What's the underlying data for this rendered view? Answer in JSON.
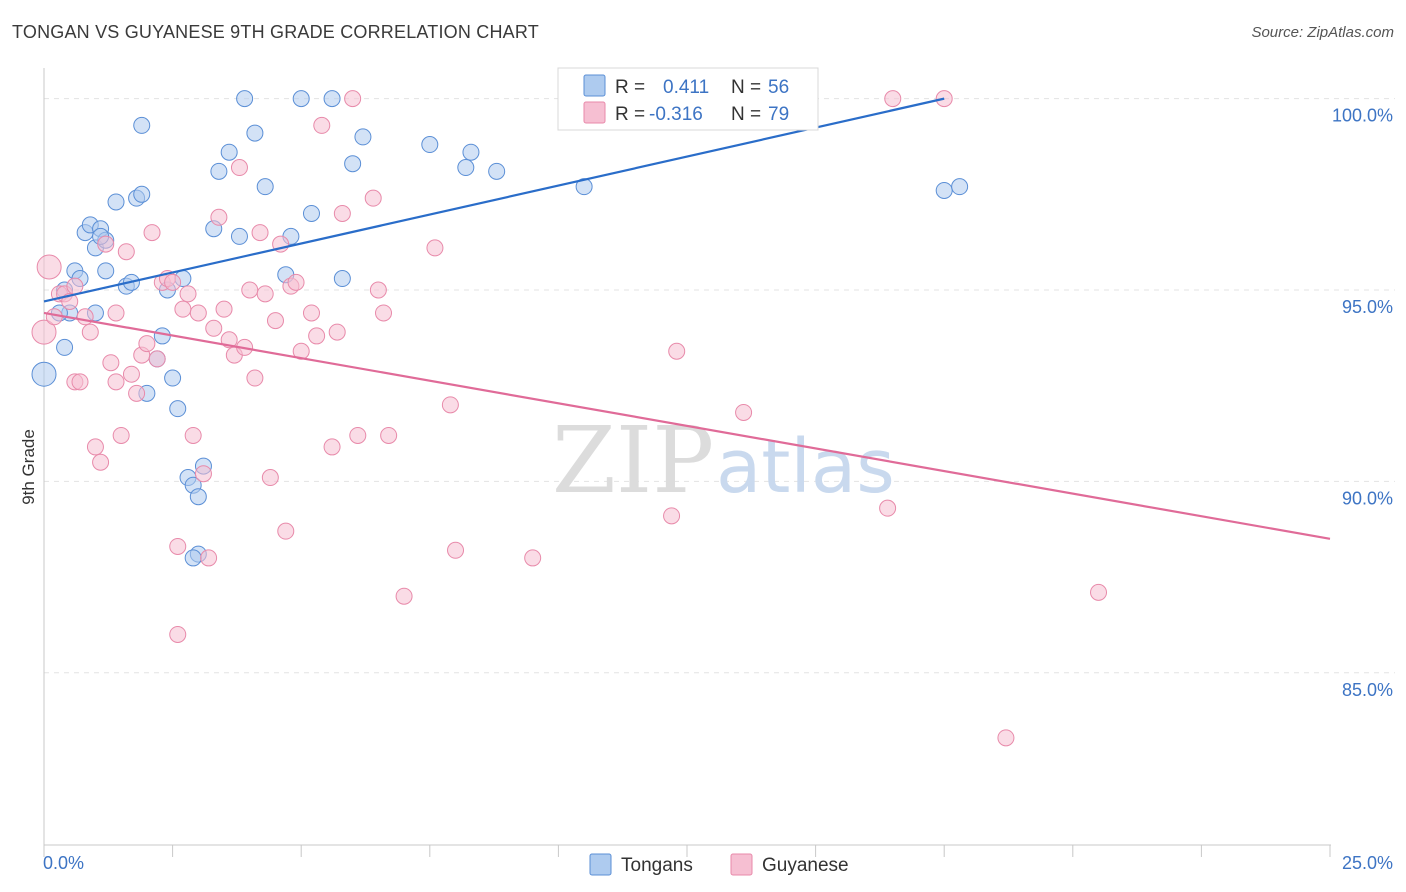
{
  "title": "TONGAN VS GUYANESE 9TH GRADE CORRELATION CHART",
  "source": "Source: ZipAtlas.com",
  "watermark": {
    "zip": "ZIP",
    "atlas": "atlas"
  },
  "legend": {
    "rows": [
      {
        "r_label": "R =",
        "r_value": "0.411",
        "n_label": "N =",
        "n_value": "56"
      },
      {
        "r_label": "R =",
        "r_value": "-0.316",
        "n_label": "N =",
        "n_value": "79"
      }
    ]
  },
  "bottom_legend": [
    "Tongans",
    "Guyanese"
  ],
  "colors": {
    "tongans_fill": "#aecbef",
    "tongans_stroke": "#5b8fd6",
    "tongans_line": "#2a6dc9",
    "guyanese_fill": "#f6bfd2",
    "guyanese_stroke": "#e88aaa",
    "guyanese_line": "#e06b98",
    "tick_label": "#3d74c4"
  },
  "chart_data": {
    "type": "scatter",
    "xlabel": "",
    "ylabel": "9th Grade",
    "xlim": [
      0,
      25
    ],
    "ylim": [
      80.5,
      100.8
    ],
    "x_tick_labels": {
      "min": "0.0%",
      "max": "25.0%"
    },
    "y_ticks": [
      {
        "value": 100,
        "label": "100.0%"
      },
      {
        "value": 95,
        "label": "95.0%"
      },
      {
        "value": 90,
        "label": "90.0%"
      },
      {
        "value": 85,
        "label": "85.0%"
      }
    ],
    "grid": true,
    "series": [
      {
        "name": "Tongans",
        "r": 0.411,
        "n": 56,
        "trend": {
          "x": [
            0,
            17.5
          ],
          "y": [
            94.7,
            100.0
          ]
        },
        "points": [
          [
            0.0,
            92.8
          ],
          [
            0.4,
            93.5
          ],
          [
            0.5,
            94.4
          ],
          [
            0.4,
            95.0
          ],
          [
            0.6,
            95.5
          ],
          [
            0.7,
            95.3
          ],
          [
            0.8,
            96.5
          ],
          [
            0.9,
            96.7
          ],
          [
            1.0,
            96.1
          ],
          [
            1.1,
            96.6
          ],
          [
            1.2,
            96.3
          ],
          [
            1.2,
            95.5
          ],
          [
            1.4,
            97.3
          ],
          [
            1.6,
            95.1
          ],
          [
            1.7,
            95.2
          ],
          [
            1.8,
            97.4
          ],
          [
            1.9,
            97.5
          ],
          [
            1.9,
            99.3
          ],
          [
            2.0,
            92.3
          ],
          [
            2.2,
            93.2
          ],
          [
            2.3,
            93.8
          ],
          [
            2.4,
            95.0
          ],
          [
            2.5,
            92.7
          ],
          [
            2.6,
            91.9
          ],
          [
            2.7,
            95.3
          ],
          [
            2.8,
            90.1
          ],
          [
            2.9,
            89.9
          ],
          [
            3.0,
            89.6
          ],
          [
            3.1,
            90.4
          ],
          [
            3.0,
            88.1
          ],
          [
            3.3,
            96.6
          ],
          [
            3.4,
            98.1
          ],
          [
            3.6,
            98.6
          ],
          [
            3.8,
            96.4
          ],
          [
            3.9,
            100.0
          ],
          [
            4.1,
            99.1
          ],
          [
            4.3,
            97.7
          ],
          [
            4.7,
            95.4
          ],
          [
            4.8,
            96.4
          ],
          [
            5.0,
            100.0
          ],
          [
            5.2,
            97.0
          ],
          [
            5.6,
            100.0
          ],
          [
            5.8,
            95.3
          ],
          [
            6.0,
            98.3
          ],
          [
            6.2,
            99.0
          ],
          [
            7.5,
            98.8
          ],
          [
            8.2,
            98.2
          ],
          [
            8.3,
            98.6
          ],
          [
            8.8,
            98.1
          ],
          [
            10.5,
            97.7
          ],
          [
            17.5,
            97.6
          ],
          [
            17.8,
            97.7
          ],
          [
            0.3,
            94.4
          ],
          [
            1.0,
            94.4
          ],
          [
            2.9,
            88.0
          ],
          [
            1.1,
            96.4
          ]
        ]
      },
      {
        "name": "Guyanese",
        "r": -0.316,
        "n": 79,
        "trend": {
          "x": [
            0,
            25
          ],
          "y": [
            94.4,
            88.5
          ]
        },
        "points": [
          [
            0.0,
            93.9
          ],
          [
            0.1,
            95.6
          ],
          [
            0.2,
            94.3
          ],
          [
            0.3,
            94.9
          ],
          [
            0.4,
            94.9
          ],
          [
            0.5,
            94.7
          ],
          [
            0.6,
            95.1
          ],
          [
            0.6,
            92.6
          ],
          [
            0.7,
            92.6
          ],
          [
            0.8,
            94.3
          ],
          [
            0.9,
            93.9
          ],
          [
            1.0,
            90.9
          ],
          [
            1.1,
            90.5
          ],
          [
            1.2,
            96.2
          ],
          [
            1.3,
            93.1
          ],
          [
            1.4,
            94.4
          ],
          [
            1.5,
            91.2
          ],
          [
            1.6,
            96.0
          ],
          [
            1.7,
            92.8
          ],
          [
            1.8,
            92.3
          ],
          [
            1.9,
            93.3
          ],
          [
            2.0,
            93.6
          ],
          [
            2.1,
            96.5
          ],
          [
            2.2,
            93.2
          ],
          [
            2.3,
            95.2
          ],
          [
            2.4,
            95.3
          ],
          [
            2.5,
            95.2
          ],
          [
            2.6,
            88.3
          ],
          [
            2.6,
            86.0
          ],
          [
            2.7,
            94.5
          ],
          [
            2.8,
            94.9
          ],
          [
            2.9,
            91.2
          ],
          [
            3.0,
            94.4
          ],
          [
            3.1,
            90.2
          ],
          [
            3.2,
            88.0
          ],
          [
            3.3,
            94.0
          ],
          [
            3.4,
            96.9
          ],
          [
            3.5,
            94.5
          ],
          [
            3.6,
            93.7
          ],
          [
            3.7,
            93.3
          ],
          [
            3.8,
            98.2
          ],
          [
            3.9,
            93.5
          ],
          [
            4.0,
            95.0
          ],
          [
            4.1,
            92.7
          ],
          [
            4.2,
            96.5
          ],
          [
            4.3,
            94.9
          ],
          [
            4.4,
            90.1
          ],
          [
            4.5,
            94.2
          ],
          [
            4.6,
            96.2
          ],
          [
            4.7,
            88.7
          ],
          [
            4.8,
            95.1
          ],
          [
            5.0,
            93.4
          ],
          [
            5.2,
            94.4
          ],
          [
            5.3,
            93.8
          ],
          [
            5.4,
            99.3
          ],
          [
            5.6,
            90.9
          ],
          [
            5.7,
            93.9
          ],
          [
            5.8,
            97.0
          ],
          [
            6.0,
            100.0
          ],
          [
            6.1,
            91.2
          ],
          [
            6.4,
            97.4
          ],
          [
            6.5,
            95.0
          ],
          [
            6.6,
            94.4
          ],
          [
            6.7,
            91.2
          ],
          [
            7.0,
            87.0
          ],
          [
            7.6,
            96.1
          ],
          [
            7.9,
            92.0
          ],
          [
            8.0,
            88.2
          ],
          [
            9.5,
            88.0
          ],
          [
            12.2,
            89.1
          ],
          [
            12.3,
            93.4
          ],
          [
            13.6,
            91.8
          ],
          [
            16.4,
            89.3
          ],
          [
            16.5,
            100.0
          ],
          [
            17.5,
            100.0
          ],
          [
            18.7,
            83.3
          ],
          [
            20.5,
            87.1
          ],
          [
            4.9,
            95.2
          ],
          [
            1.4,
            92.6
          ]
        ]
      }
    ]
  }
}
